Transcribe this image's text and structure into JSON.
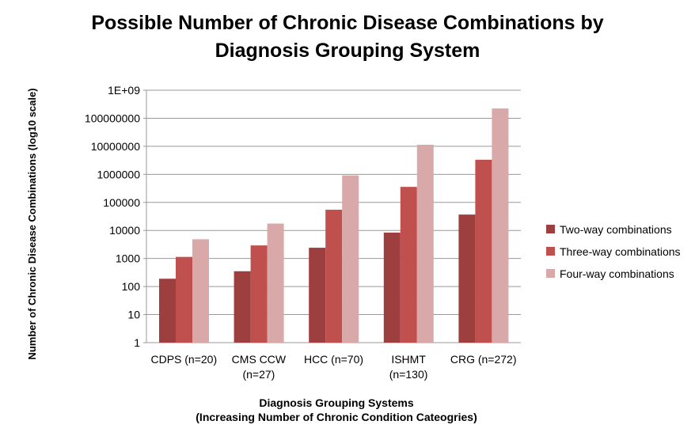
{
  "chart_data": {
    "type": "bar",
    "title": "Possible Number of Chronic Disease Combinations by Diagnosis Grouping System",
    "title_lines": [
      "Possible Number of Chronic Disease Combinations by",
      "Diagnosis Grouping System"
    ],
    "xlabel_lines": [
      "Diagnosis Grouping Systems",
      "(Increasing Number of Chronic Condition Cateogries)"
    ],
    "ylabel": "Number of Chronic Disease Combinations (log10 scale)",
    "yscale": "log10",
    "ylim": [
      1,
      1000000000
    ],
    "ytick_labels": [
      "1",
      "10",
      "100",
      "1000",
      "10000",
      "100000",
      "1000000",
      "10000000",
      "100000000",
      "1E+09"
    ],
    "grid": true,
    "legend_position": "right",
    "categories": [
      [
        "CDPS (n=20)"
      ],
      [
        "CMS CCW",
        "(n=27)"
      ],
      [
        "HCC (n=70)"
      ],
      [
        "ISHMT",
        "(n=130)"
      ],
      [
        "CRG (n=272)"
      ]
    ],
    "series": [
      {
        "name": "Two-way combinations",
        "color": "#9e3f3f",
        "values": [
          190,
          351,
          2415,
          8385,
          36856
        ]
      },
      {
        "name": "Three-way combinations",
        "color": "#c0504d",
        "values": [
          1140,
          2925,
          54740,
          357760,
          3317040
        ]
      },
      {
        "name": "Four-way combinations",
        "color": "#d9a8a8",
        "values": [
          4845,
          17550,
          916895,
          11358880,
          223092870
        ]
      }
    ]
  }
}
